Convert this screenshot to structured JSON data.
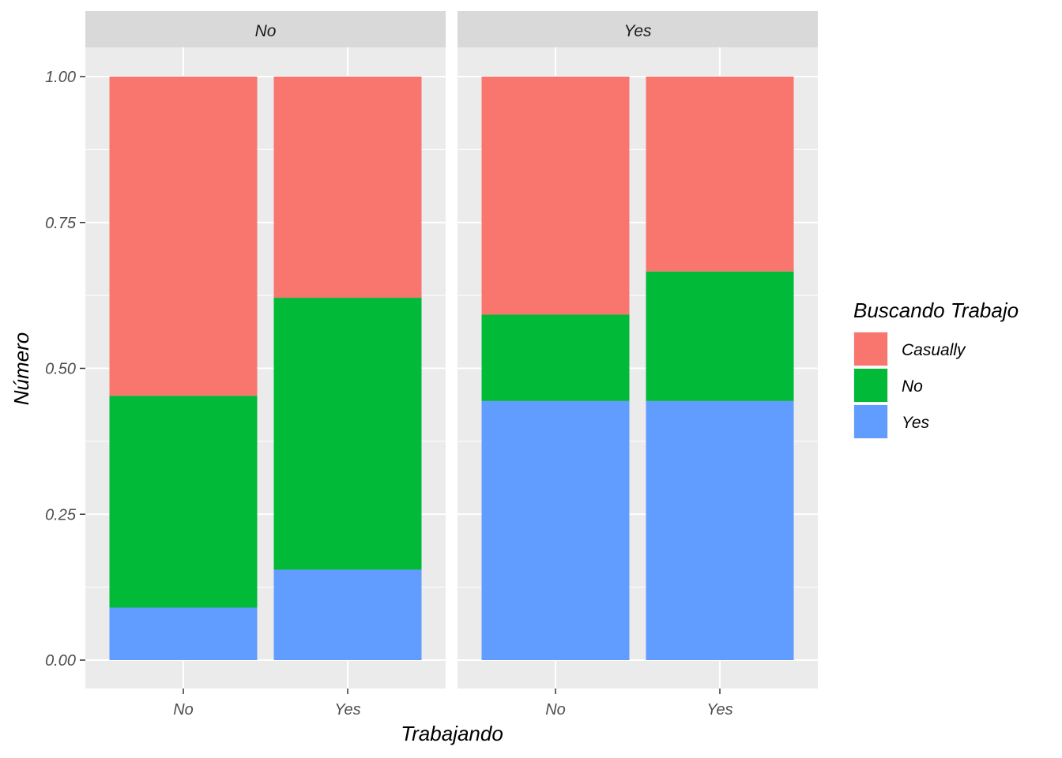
{
  "chart_data": {
    "type": "bar",
    "stacked": true,
    "position": "fill",
    "xlabel": "Trabajando",
    "ylabel": "Número",
    "ylim": [
      0,
      1
    ],
    "y_ticks": [
      "0.00",
      "0.25",
      "0.50",
      "0.75",
      "1.00"
    ],
    "y_tick_values": [
      0,
      0.25,
      0.5,
      0.75,
      1
    ],
    "categories": [
      "No",
      "Yes"
    ],
    "grid": true,
    "legend": {
      "title": "Buscando Trabajo",
      "placement": "right",
      "entries": [
        "Casually",
        "No",
        "Yes"
      ]
    },
    "facets": [
      {
        "label": "No",
        "series": [
          {
            "name": "Yes",
            "values": [
              0.09,
              0.155
            ]
          },
          {
            "name": "No",
            "values": [
              0.363,
              0.466
            ]
          },
          {
            "name": "Casually",
            "values": [
              0.547,
              0.379
            ]
          }
        ]
      },
      {
        "label": "Yes",
        "series": [
          {
            "name": "Yes",
            "values": [
              0.444,
              0.444
            ]
          },
          {
            "name": "No",
            "values": [
              0.148,
              0.222
            ]
          },
          {
            "name": "Casually",
            "values": [
              0.408,
              0.334
            ]
          }
        ]
      }
    ],
    "colors": {
      "Casually": "#F8766D",
      "No": "#00BA38",
      "Yes": "#619CFF"
    }
  }
}
